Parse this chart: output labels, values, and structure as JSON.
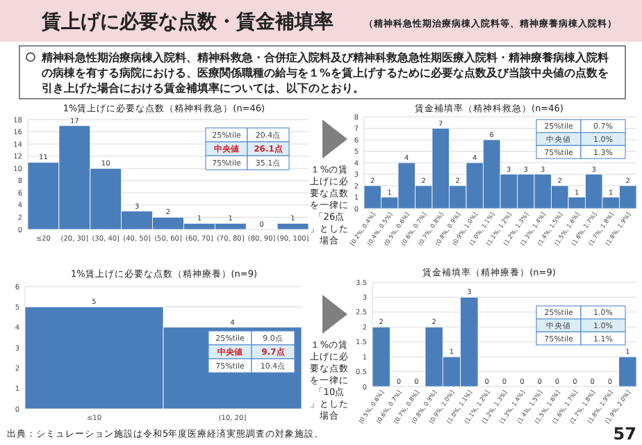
{
  "chart_data": [
    {
      "type": "other",
      "title": "賃上げに必要な点数・賃金補填率",
      "subtitle": "（精神科急性期治療病棟入院料等、精神療養病棟入院料）",
      "annotations": [
        "精神科急性期治療病棟入院料、精神科救急・合併症入院料及び精神科救急急性期医療入院料・精神療養病棟入院料の病棟を有する病院における、医療関係職種の給与を１%を賃上げするために必要な点数及び当該中央値の点数を引き上げた場合における賃金補填率については、以下のとおり。",
        "出典：シミュレーション施設は令和5年度医療経済実態調査の対象施設。",
        "57"
      ]
    },
    {
      "type": "bar",
      "title": "1%賃上げに必要な点数（精神科救急）(n=46)",
      "categories": [
        "≤20",
        "(20, 30]",
        "(30, 40]",
        "(40, 50]",
        "(50, 60]",
        "(60, 70]",
        "(70, 80]",
        "(80, 90]",
        "(90, 100]"
      ],
      "values": [
        11,
        17,
        10,
        3,
        2,
        1,
        1,
        0,
        1
      ],
      "color": "#4a7ebb",
      "ylim": [
        0,
        18
      ],
      "yticks": [
        0,
        2,
        4,
        6,
        8,
        10,
        12,
        14,
        16,
        18
      ],
      "grid": "y",
      "data_labels": true,
      "annotations": [
        "25%tile",
        "20.4点",
        "中央値",
        "26.1点",
        "75%tile",
        "35.1点"
      ]
    },
    {
      "type": "bar",
      "title": "賃金補填率（精神科救急）(n=46)",
      "categories": [
        "[0.2%, 0.4%]",
        "(0.4%, 0.5%]",
        "(0.5%, 0.6%]",
        "(0.6%, 0.7%]",
        "(0.7%, 0.8%]",
        "(0.8%, 0.9%]",
        "(0.9%, 1.0%]",
        "(1.0%, 1.1%]",
        "(1.1%, 1.2%]",
        "(1.2%, 1.3%]",
        "(1.3%, 1.4%]",
        "(1.4%, 1.5%]",
        "(1.5%, 1.6%]",
        "(1.6%, 1.7%]",
        "(1.7%, 1.8%]",
        "(1.8%, 1.9%]"
      ],
      "values": [
        2,
        1,
        4,
        2,
        7,
        2,
        4,
        6,
        3,
        3,
        3,
        2,
        1,
        3,
        1,
        2
      ],
      "color": "#4a7ebb",
      "ylim": [
        0,
        8
      ],
      "yticks": [
        0,
        1,
        2,
        3,
        4,
        5,
        6,
        7,
        8
      ],
      "grid": "y",
      "data_labels": true,
      "annotations": [
        "25%tile",
        "0.7%",
        "中央値",
        "1.0%",
        "75%tile",
        "1.3%",
        "１%の賃上げに必要な点数を一律に「26点」とした場合"
      ]
    },
    {
      "type": "bar",
      "title": "1%賃上げに必要な点数（精神療養）(n=9)",
      "categories": [
        "≤10",
        "(10, 20]"
      ],
      "values": [
        5,
        4
      ],
      "color": "#4a7ebb",
      "ylim": [
        0,
        6
      ],
      "yticks": [
        0,
        1,
        2,
        3,
        4,
        5,
        6
      ],
      "grid": "y",
      "data_labels": true,
      "annotations": [
        "25%tile",
        "9.0点",
        "中央値",
        "9.7点",
        "75%tile",
        "10.4点"
      ]
    },
    {
      "type": "bar",
      "title": "賃金補填率（精神療養）(n=9)",
      "categories": [
        "(0.5%, 0.6%]",
        "(0.6%, 0.7%]",
        "(0.7%, 0.8%]",
        "(0.8%, 0.9%]",
        "(0.9%, 1.0%]",
        "(1.0%, 1.1%]",
        "(1.1%, 1.2%]",
        "(1.2%, 1.3%]",
        "(1.3%, 1.4%]",
        "(1.4%, 1.5%]",
        "(1.5%, 1.6%]",
        "(1.6%, 1.7%]",
        "(1.7%, 1.8%]",
        "(1.8%, 1.9%]",
        "(1.9%, 2.0%]"
      ],
      "values": [
        2,
        0,
        0,
        2,
        1,
        3,
        0,
        0,
        0,
        0,
        0,
        0,
        0,
        0,
        1
      ],
      "color": "#4a7ebb",
      "ylim": [
        0,
        3.5
      ],
      "yticks": [
        0,
        0.5,
        1,
        1.5,
        2,
        2.5,
        3,
        3.5
      ],
      "grid": "y",
      "data_labels": true,
      "annotations": [
        "25%tile",
        "1.0%",
        "中央値",
        "1.0%",
        "75%tile",
        "1.1%",
        "１%の賃上げに必要な点数を一律に「10点」とした場合"
      ]
    }
  ]
}
